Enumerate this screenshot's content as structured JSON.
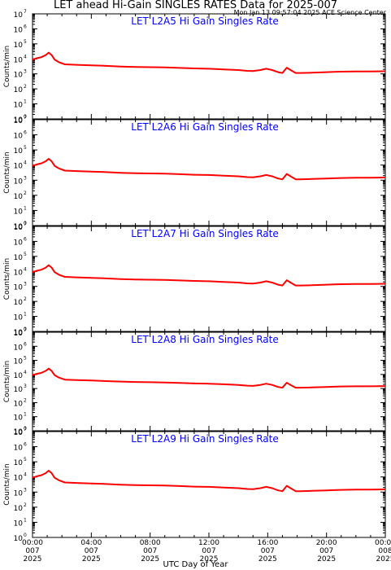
{
  "header": {
    "title": "LET ahead Hi-Gain SINGLES RATES Data for 2025-007",
    "timestamp": "Mon Jan 13 09:57:04 2025 ACE Science Center"
  },
  "axes": {
    "xlabel": "UTC Day of Year",
    "ylabel": "Counts/min"
  },
  "chart_data": [
    {
      "type": "line",
      "title": "LET L2A5 Hi Gain Singles Rate",
      "ylabel": "Counts/min",
      "yscale": "log",
      "ylim": [
        1,
        10000000
      ],
      "xlim": [
        0,
        24
      ],
      "color": "#ff0000",
      "x": [
        0,
        0.3,
        0.6,
        0.9,
        1.1,
        1.3,
        1.5,
        1.8,
        2.2,
        3,
        4,
        5,
        6,
        7,
        8,
        9,
        10,
        11,
        12,
        13,
        14,
        14.6,
        15,
        15.5,
        15.9,
        16.3,
        16.7,
        17,
        17.3,
        17.6,
        17.9,
        18.2,
        19,
        20,
        20.5,
        21,
        22,
        23,
        24
      ],
      "y": [
        9000,
        11000,
        13000,
        18000,
        26000,
        18000,
        9000,
        6000,
        4300,
        4000,
        3700,
        3400,
        3100,
        2900,
        2800,
        2700,
        2500,
        2300,
        2200,
        2000,
        1800,
        1600,
        1550,
        1800,
        2200,
        1800,
        1300,
        1150,
        2600,
        1700,
        1150,
        1150,
        1200,
        1300,
        1350,
        1400,
        1450,
        1450,
        1500
      ]
    },
    {
      "type": "line",
      "title": "LET L2A6 Hi Gain Singles Rate",
      "ylabel": "Counts/min",
      "yscale": "log",
      "ylim": [
        1,
        10000000
      ],
      "xlim": [
        0,
        24
      ],
      "color": "#ff0000",
      "x": [
        0,
        0.3,
        0.6,
        0.9,
        1.1,
        1.3,
        1.5,
        1.8,
        2.2,
        3,
        4,
        5,
        6,
        7,
        8,
        9,
        10,
        11,
        12,
        13,
        14,
        14.6,
        15,
        15.5,
        15.9,
        16.3,
        16.7,
        17,
        17.3,
        17.6,
        17.9,
        18.2,
        19,
        20,
        20.5,
        21,
        22,
        23,
        24
      ],
      "y": [
        9000,
        11000,
        13000,
        18000,
        26000,
        18000,
        9000,
        6000,
        4300,
        4000,
        3700,
        3400,
        3100,
        2900,
        2800,
        2700,
        2500,
        2300,
        2200,
        2000,
        1800,
        1600,
        1550,
        1800,
        2200,
        1800,
        1300,
        1150,
        2600,
        1700,
        1150,
        1150,
        1200,
        1300,
        1350,
        1400,
        1450,
        1450,
        1500
      ]
    },
    {
      "type": "line",
      "title": "LET L2A7 Hi Gain Singles Rate",
      "ylabel": "Counts/min",
      "yscale": "log",
      "ylim": [
        1,
        10000000
      ],
      "xlim": [
        0,
        24
      ],
      "color": "#ff0000",
      "x": [
        0,
        0.3,
        0.6,
        0.9,
        1.1,
        1.3,
        1.5,
        1.8,
        2.2,
        3,
        4,
        5,
        6,
        7,
        8,
        9,
        10,
        11,
        12,
        13,
        14,
        14.6,
        15,
        15.5,
        15.9,
        16.3,
        16.7,
        17,
        17.3,
        17.6,
        17.9,
        18.2,
        19,
        20,
        20.5,
        21,
        22,
        23,
        24
      ],
      "y": [
        9000,
        11000,
        13000,
        18000,
        26000,
        18000,
        9000,
        6000,
        4300,
        4000,
        3700,
        3400,
        3100,
        2900,
        2800,
        2700,
        2500,
        2300,
        2200,
        2000,
        1800,
        1600,
        1550,
        1800,
        2200,
        1800,
        1300,
        1150,
        2600,
        1700,
        1150,
        1150,
        1200,
        1300,
        1350,
        1400,
        1450,
        1450,
        1500
      ]
    },
    {
      "type": "line",
      "title": "LET L2A8 Hi Gain Singles Rate",
      "ylabel": "Counts/min",
      "yscale": "log",
      "ylim": [
        1,
        10000000
      ],
      "xlim": [
        0,
        24
      ],
      "color": "#ff0000",
      "x": [
        0,
        0.3,
        0.6,
        0.9,
        1.1,
        1.3,
        1.5,
        1.8,
        2.2,
        3,
        4,
        5,
        6,
        7,
        8,
        9,
        10,
        11,
        12,
        13,
        14,
        14.6,
        15,
        15.5,
        15.9,
        16.3,
        16.7,
        17,
        17.3,
        17.6,
        17.9,
        18.2,
        19,
        20,
        20.5,
        21,
        22,
        23,
        24
      ],
      "y": [
        9000,
        11000,
        13000,
        18000,
        26000,
        18000,
        9000,
        6000,
        4300,
        4000,
        3700,
        3400,
        3100,
        2900,
        2800,
        2700,
        2500,
        2300,
        2200,
        2000,
        1800,
        1600,
        1550,
        1800,
        2200,
        1800,
        1300,
        1150,
        2600,
        1700,
        1150,
        1150,
        1200,
        1300,
        1350,
        1400,
        1450,
        1450,
        1500
      ]
    },
    {
      "type": "line",
      "title": "LET L2A9 Hi Gain Singles Rate",
      "ylabel": "Counts/min",
      "yscale": "log",
      "ylim": [
        1,
        10000000
      ],
      "xlim": [
        0,
        24
      ],
      "color": "#ff0000",
      "x": [
        0,
        0.3,
        0.6,
        0.9,
        1.1,
        1.3,
        1.5,
        1.8,
        2.2,
        3,
        4,
        5,
        6,
        7,
        8,
        9,
        10,
        11,
        12,
        13,
        14,
        14.6,
        15,
        15.5,
        15.9,
        16.3,
        16.7,
        17,
        17.3,
        17.6,
        17.9,
        18.2,
        19,
        20,
        20.5,
        21,
        22,
        23,
        24
      ],
      "y": [
        9000,
        11000,
        13000,
        18000,
        26000,
        18000,
        9000,
        6000,
        4300,
        4000,
        3700,
        3400,
        3100,
        2900,
        2800,
        2700,
        2500,
        2300,
        2200,
        2000,
        1800,
        1600,
        1550,
        1800,
        2200,
        1800,
        1300,
        1150,
        2600,
        1700,
        1150,
        1150,
        1200,
        1300,
        1350,
        1400,
        1450,
        1450,
        1500
      ]
    }
  ],
  "xticks": [
    {
      "x": 0,
      "lines": [
        "00:00",
        "007",
        "2025"
      ]
    },
    {
      "x": 4,
      "lines": [
        "04:00",
        "007",
        "2025"
      ]
    },
    {
      "x": 8,
      "lines": [
        "08:00",
        "007",
        "2025"
      ]
    },
    {
      "x": 12,
      "lines": [
        "12:00",
        "007",
        "2025"
      ]
    },
    {
      "x": 16,
      "lines": [
        "16:00",
        "007",
        "2025"
      ]
    },
    {
      "x": 20,
      "lines": [
        "20:00",
        "007",
        "2025"
      ]
    },
    {
      "x": 24,
      "lines": [
        "00:00",
        "008",
        "2025"
      ]
    }
  ],
  "yticks": [
    {
      "exp": 0,
      "label": "10",
      "sup": "0"
    },
    {
      "exp": 1,
      "label": "10",
      "sup": "1"
    },
    {
      "exp": 2,
      "label": "10",
      "sup": "2"
    },
    {
      "exp": 3,
      "label": "10",
      "sup": "3"
    },
    {
      "exp": 4,
      "label": "10",
      "sup": "4"
    },
    {
      "exp": 5,
      "label": "10",
      "sup": "5"
    },
    {
      "exp": 6,
      "label": "10",
      "sup": "6"
    },
    {
      "exp": 7,
      "label": "10",
      "sup": "7"
    }
  ],
  "colors": {
    "trace": "#ff0000",
    "panel_title": "#0000ff",
    "axes": "#000000"
  }
}
